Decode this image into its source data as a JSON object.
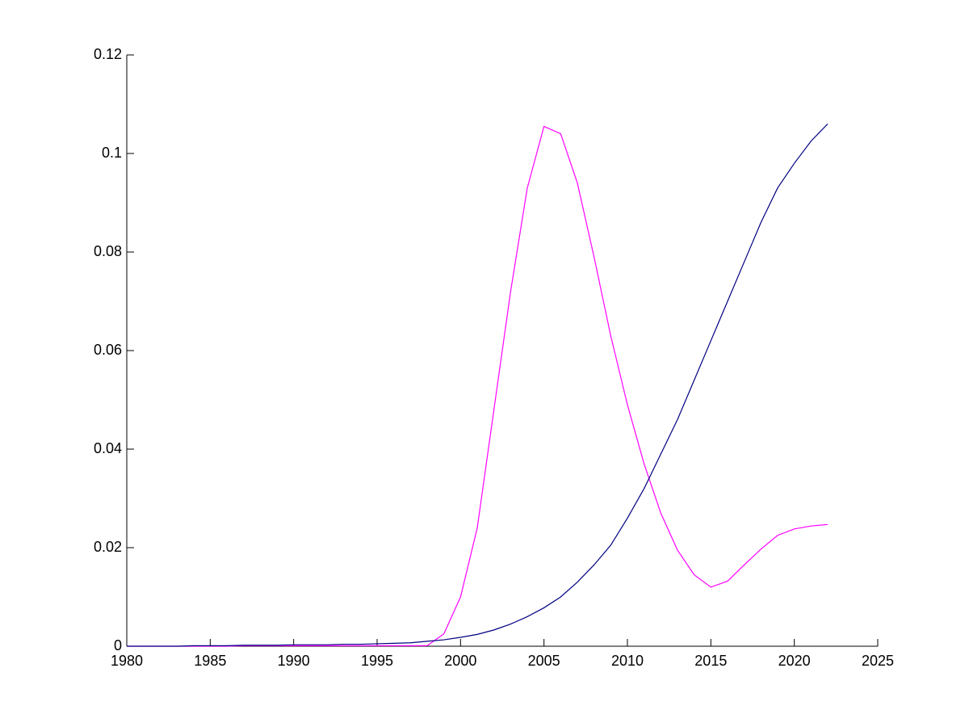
{
  "chart_data": {
    "type": "line",
    "x": [
      1980,
      1981,
      1982,
      1983,
      1984,
      1985,
      1986,
      1987,
      1988,
      1989,
      1990,
      1991,
      1992,
      1993,
      1994,
      1995,
      1996,
      1997,
      1998,
      1999,
      2000,
      2001,
      2002,
      2003,
      2004,
      2005,
      2006,
      2007,
      2008,
      2009,
      2010,
      2011,
      2012,
      2013,
      2014,
      2015,
      2016,
      2017,
      2018,
      2019,
      2020,
      2021,
      2022
    ],
    "series": [
      {
        "color": "#ff00ff",
        "values": [
          0,
          0,
          0,
          0,
          0,
          0,
          0,
          0.0001,
          0.0001,
          0.0001,
          0.0001,
          0.0001,
          0.0001,
          0.0001,
          0.0001,
          0.0001,
          0.0001,
          0.0001,
          0.0001,
          0.0025,
          0.01,
          0.024,
          0.048,
          0.072,
          0.093,
          0.1055,
          0.104,
          0.094,
          0.079,
          0.063,
          0.049,
          0.037,
          0.027,
          0.0195,
          0.0145,
          0.012,
          0.0132,
          0.0165,
          0.0197,
          0.0225,
          0.0238,
          0.0244,
          0.0247
        ]
      },
      {
        "color": "#000080",
        "values": [
          0,
          0,
          0,
          0,
          0.0001,
          0.0001,
          0.0001,
          0.0002,
          0.0002,
          0.0002,
          0.0003,
          0.0003,
          0.0003,
          0.0004,
          0.0004,
          0.0005,
          0.0006,
          0.0007,
          0.001,
          0.0013,
          0.0018,
          0.0024,
          0.0033,
          0.0045,
          0.006,
          0.0078,
          0.01,
          0.013,
          0.0165,
          0.0205,
          0.026,
          0.032,
          0.039,
          0.046,
          0.054,
          0.062,
          0.07,
          0.078,
          0.086,
          0.093,
          0.098,
          0.1025,
          0.106
        ]
      }
    ],
    "xlim": [
      1980,
      2025
    ],
    "xticks": [
      1980,
      1985,
      1990,
      1995,
      2000,
      2005,
      2010,
      2015,
      2020,
      2025
    ],
    "ylim": [
      0,
      0.12
    ],
    "yticks": [
      0,
      0.02,
      0.04,
      0.06,
      0.08,
      0.1,
      0.12
    ]
  }
}
